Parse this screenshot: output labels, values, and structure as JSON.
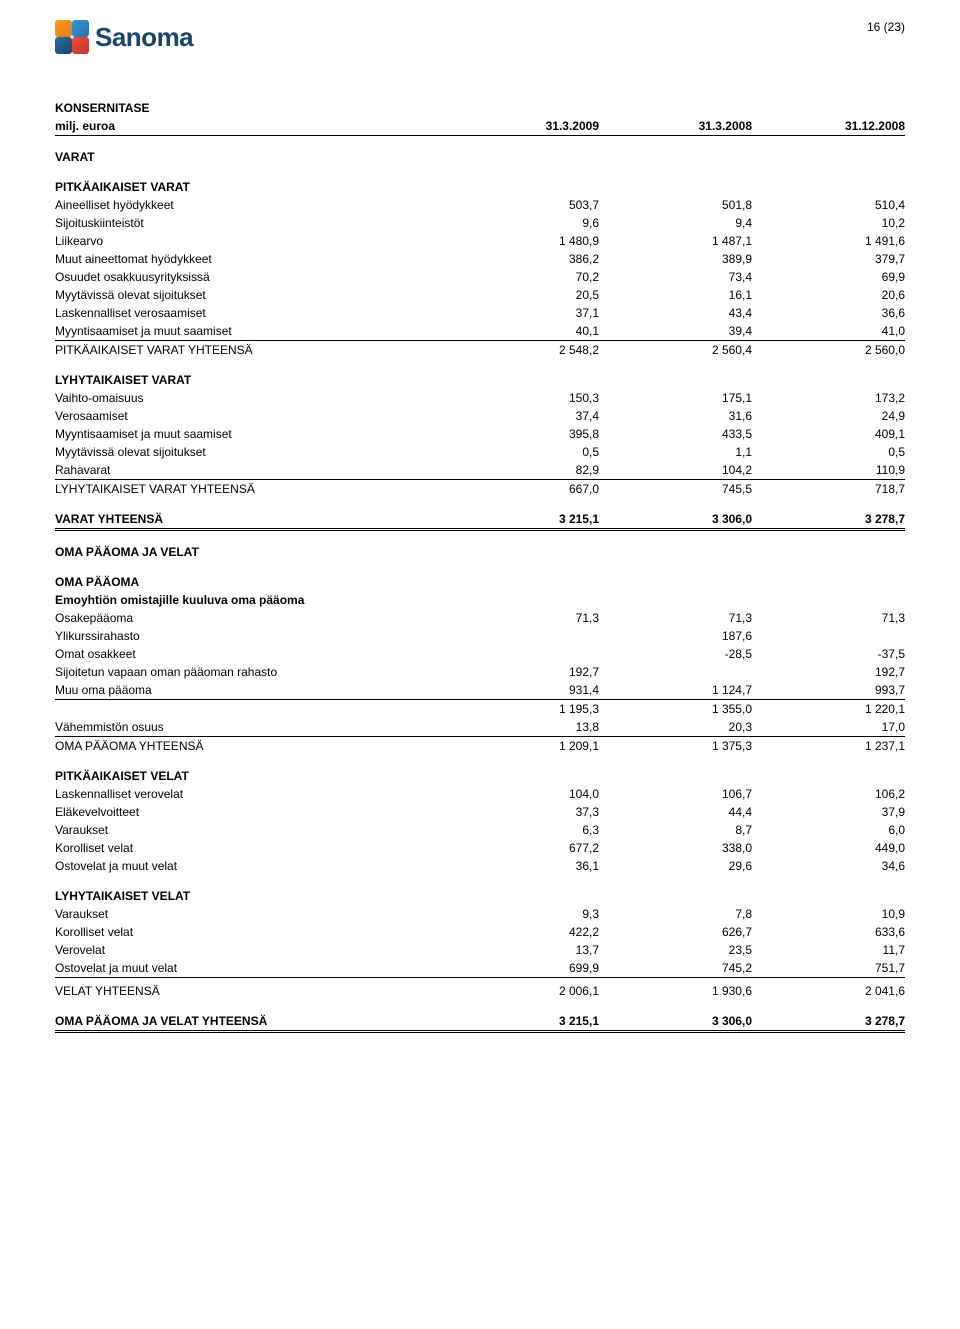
{
  "header": {
    "logo_text": "Sanoma",
    "page_number": "16 (23)"
  },
  "title": {
    "line1": "KONSERNITASE",
    "line2": "milj. euroa"
  },
  "col_headers": [
    "31.3.2009",
    "31.3.2008",
    "31.12.2008"
  ],
  "sections": [
    {
      "heading": "VARAT",
      "gap_before": "section",
      "rows": []
    },
    {
      "heading": "PITKÄAIKAISET VARAT",
      "gap_before": "section",
      "rows": [
        {
          "label": "Aineelliset hyödykkeet",
          "v": [
            "503,7",
            "501,8",
            "510,4"
          ]
        },
        {
          "label": "Sijoituskiinteistöt",
          "v": [
            "9,6",
            "9,4",
            "10,2"
          ]
        },
        {
          "label": "Liikearvo",
          "v": [
            "1 480,9",
            "1 487,1",
            "1 491,6"
          ]
        },
        {
          "label": "Muut aineettomat hyödykkeet",
          "v": [
            "386,2",
            "389,9",
            "379,7"
          ]
        },
        {
          "label": "Osuudet osakkuusyrityksissä",
          "v": [
            "70,2",
            "73,4",
            "69,9"
          ]
        },
        {
          "label": "Myytävissä olevat sijoitukset",
          "v": [
            "20,5",
            "16,1",
            "20,6"
          ]
        },
        {
          "label": "Laskennalliset verosaamiset",
          "v": [
            "37,1",
            "43,4",
            "36,6"
          ]
        },
        {
          "label": "Myyntisaamiset ja muut saamiset",
          "v": [
            "40,1",
            "39,4",
            "41,0"
          ]
        },
        {
          "label": "PITKÄAIKAISET VARAT YHTEENSÄ",
          "v": [
            "2 548,2",
            "2 560,4",
            "2 560,0"
          ],
          "rule_top": true
        }
      ]
    },
    {
      "heading": "LYHYTAIKAISET VARAT",
      "gap_before": "section",
      "rows": [
        {
          "label": "Vaihto-omaisuus",
          "v": [
            "150,3",
            "175,1",
            "173,2"
          ]
        },
        {
          "label": "Verosaamiset",
          "v": [
            "37,4",
            "31,6",
            "24,9"
          ]
        },
        {
          "label": "Myyntisaamiset ja muut saamiset",
          "v": [
            "395,8",
            "433,5",
            "409,1"
          ]
        },
        {
          "label": "Myytävissä olevat sijoitukset",
          "v": [
            "0,5",
            "1,1",
            "0,5"
          ]
        },
        {
          "label": "Rahavarat",
          "v": [
            "82,9",
            "104,2",
            "110,9"
          ]
        },
        {
          "label": "LYHYTAIKAISET VARAT YHTEENSÄ",
          "v": [
            "667,0",
            "745,5",
            "718,7"
          ],
          "rule_top": true
        }
      ]
    },
    {
      "gap_before": "section",
      "rows": [
        {
          "label": "VARAT YHTEENSÄ",
          "v": [
            "3 215,1",
            "3 306,0",
            "3 278,7"
          ],
          "bold": true,
          "double_rule": true
        }
      ]
    },
    {
      "heading": "OMA PÄÄOMA JA VELAT",
      "gap_before": "section",
      "rows": []
    },
    {
      "heading": "OMA PÄÄOMA",
      "gap_before": "section",
      "rows": [
        {
          "label": "Emoyhtiön omistajille kuuluva oma pääoma",
          "bold": true,
          "v": [
            "",
            "",
            ""
          ]
        },
        {
          "label": "Osakepääoma",
          "v": [
            "71,3",
            "71,3",
            "71,3"
          ]
        },
        {
          "label": "Ylikurssirahasto",
          "v": [
            "",
            "187,6",
            ""
          ]
        },
        {
          "label": "Omat osakkeet",
          "v": [
            "",
            "-28,5",
            "-37,5"
          ]
        },
        {
          "label": "Sijoitetun vapaan oman pääoman rahasto",
          "v": [
            "192,7",
            "",
            "192,7"
          ]
        },
        {
          "label": "Muu oma pääoma",
          "v": [
            "931,4",
            "1 124,7",
            "993,7"
          ]
        },
        {
          "label": "",
          "v": [
            "1 195,3",
            "1 355,0",
            "1 220,1"
          ],
          "rule_top": true
        },
        {
          "label": "Vähemmistön osuus",
          "v": [
            "13,8",
            "20,3",
            "17,0"
          ]
        },
        {
          "label": "OMA PÄÄOMA YHTEENSÄ",
          "v": [
            "1 209,1",
            "1 375,3",
            "1 237,1"
          ],
          "rule_top": true
        }
      ]
    },
    {
      "heading": "PITKÄAIKAISET VELAT",
      "gap_before": "section",
      "rows": [
        {
          "label": "Laskennalliset verovelat",
          "v": [
            "104,0",
            "106,7",
            "106,2"
          ]
        },
        {
          "label": "Eläkevelvoitteet",
          "v": [
            "37,3",
            "44,4",
            "37,9"
          ]
        },
        {
          "label": "Varaukset",
          "v": [
            "6,3",
            "8,7",
            "6,0"
          ]
        },
        {
          "label": "Korolliset velat",
          "v": [
            "677,2",
            "338,0",
            "449,0"
          ]
        },
        {
          "label": "Ostovelat ja muut velat",
          "v": [
            "36,1",
            "29,6",
            "34,6"
          ]
        }
      ]
    },
    {
      "heading": "LYHYTAIKAISET VELAT",
      "gap_before": "section",
      "rows": [
        {
          "label": "Varaukset",
          "v": [
            "9,3",
            "7,8",
            "10,9"
          ]
        },
        {
          "label": "Korolliset velat",
          "v": [
            "422,2",
            "626,7",
            "633,6"
          ]
        },
        {
          "label": "Verovelat",
          "v": [
            "13,7",
            "23,5",
            "11,7"
          ]
        },
        {
          "label": "Ostovelat ja muut velat",
          "v": [
            "699,9",
            "745,2",
            "751,7"
          ]
        }
      ]
    },
    {
      "gap_before": "tiny",
      "rows": [
        {
          "label": "VELAT YHTEENSÄ",
          "v": [
            "2 006,1",
            "1 930,6",
            "2 041,6"
          ],
          "rule_top": true
        }
      ]
    },
    {
      "gap_before": "section",
      "rows": [
        {
          "label": "OMA PÄÄOMA JA VELAT YHTEENSÄ",
          "v": [
            "3 215,1",
            "3 306,0",
            "3 278,7"
          ],
          "bold": true,
          "double_rule": true
        }
      ]
    }
  ]
}
